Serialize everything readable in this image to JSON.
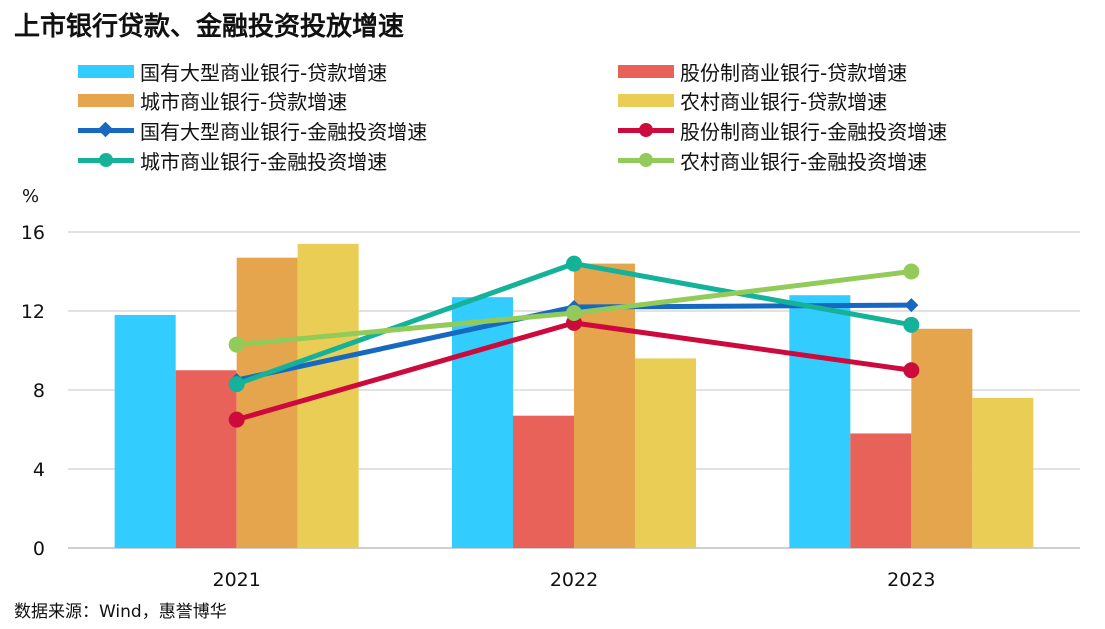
{
  "chart_data": {
    "type": "bar",
    "title": "上市银行贷款、金融投资投放增速",
    "ylabel": "%",
    "categories": [
      "2021",
      "2022",
      "2023"
    ],
    "ylim": [
      0,
      16
    ],
    "yticks": [
      0,
      4,
      8,
      12,
      16
    ],
    "grid": true,
    "legend_position": "top",
    "series": [
      {
        "name": "国有大型商业银行-贷款增速",
        "kind": "bar",
        "color": "#33CCFF",
        "values": [
          11.8,
          12.7,
          12.8
        ]
      },
      {
        "name": "股份制商业银行-贷款增速",
        "kind": "bar",
        "color": "#E8625A",
        "values": [
          9.0,
          6.7,
          5.8
        ]
      },
      {
        "name": "城市商业银行-贷款增速",
        "kind": "bar",
        "color": "#E4A54C",
        "values": [
          14.7,
          14.4,
          11.1
        ]
      },
      {
        "name": "农村商业银行-贷款增速",
        "kind": "bar",
        "color": "#EACD55",
        "values": [
          15.4,
          9.6,
          7.6
        ]
      },
      {
        "name": "国有大型商业银行-金融投资增速",
        "kind": "line",
        "marker": "diamond",
        "color": "#1768C0",
        "values": [
          8.5,
          12.2,
          12.3
        ]
      },
      {
        "name": "股份制商业银行-金融投资增速",
        "kind": "line",
        "marker": "circle",
        "color": "#CC0A3C",
        "values": [
          6.5,
          11.4,
          9.0
        ]
      },
      {
        "name": "城市商业银行-金融投资增速",
        "kind": "line",
        "marker": "circle",
        "color": "#14B299",
        "values": [
          8.3,
          14.4,
          11.3
        ]
      },
      {
        "name": "农村商业银行-金融投资增速",
        "kind": "line",
        "marker": "circle",
        "color": "#92CB5A",
        "values": [
          10.3,
          11.9,
          14.0
        ]
      }
    ],
    "source": "数据来源：Wind，惠誉博华"
  }
}
